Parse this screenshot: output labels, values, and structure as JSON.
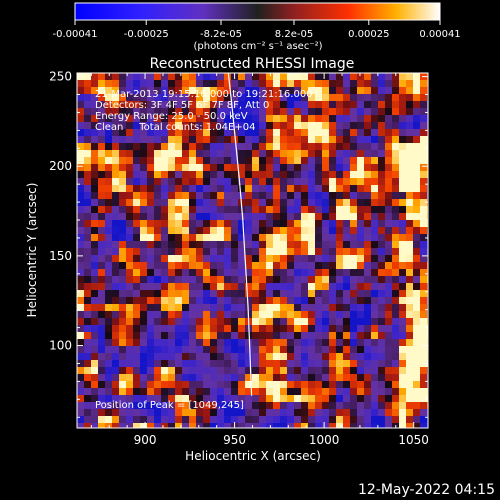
{
  "colorbar": {
    "tick_labels": [
      "-0.00041",
      "-0.00025",
      "-8.2e-05",
      "8.2e-05",
      "0.00025",
      "0.00041"
    ],
    "tick_values": [
      -0.00041,
      -0.00025,
      -8.2e-05,
      8.2e-05,
      0.00025,
      0.00041
    ],
    "range": [
      -0.00041,
      0.00041
    ],
    "units_label": "(photons cm⁻² s⁻¹ asec⁻²)"
  },
  "chart_data": {
    "type": "heatmap",
    "title": "Reconstructed RHESSI Image",
    "xlabel": "Heliocentric X (arcsec)",
    "ylabel": "Heliocentric Y (arcsec)",
    "xlim": [
      862,
      1058
    ],
    "ylim": [
      54,
      252
    ],
    "xticks": [
      900,
      950,
      1000,
      1050
    ],
    "yticks": [
      100,
      150,
      200,
      250
    ],
    "info_lines": [
      "21-Mar-2013 19:15:16.000 to 19:21:16.000",
      "Detectors: 3F 4F 5F 6F 7F 8F, Att 0",
      "Energy Range: 25.0 - 50.0 keV",
      "Clean     Total counts: 1.04E+04"
    ],
    "peak_annotation": "Position of Peak = [1049,245]",
    "limb_curve": {
      "x": [
        946.5,
        948.5,
        950.5,
        952.5,
        954.5,
        956.0,
        957.5,
        958.5,
        959.5
      ],
      "y": [
        252,
        234,
        214,
        194,
        171,
        147,
        122,
        98,
        72
      ]
    }
  },
  "footer": {
    "timestamp": "12-May-2022 04:15"
  }
}
